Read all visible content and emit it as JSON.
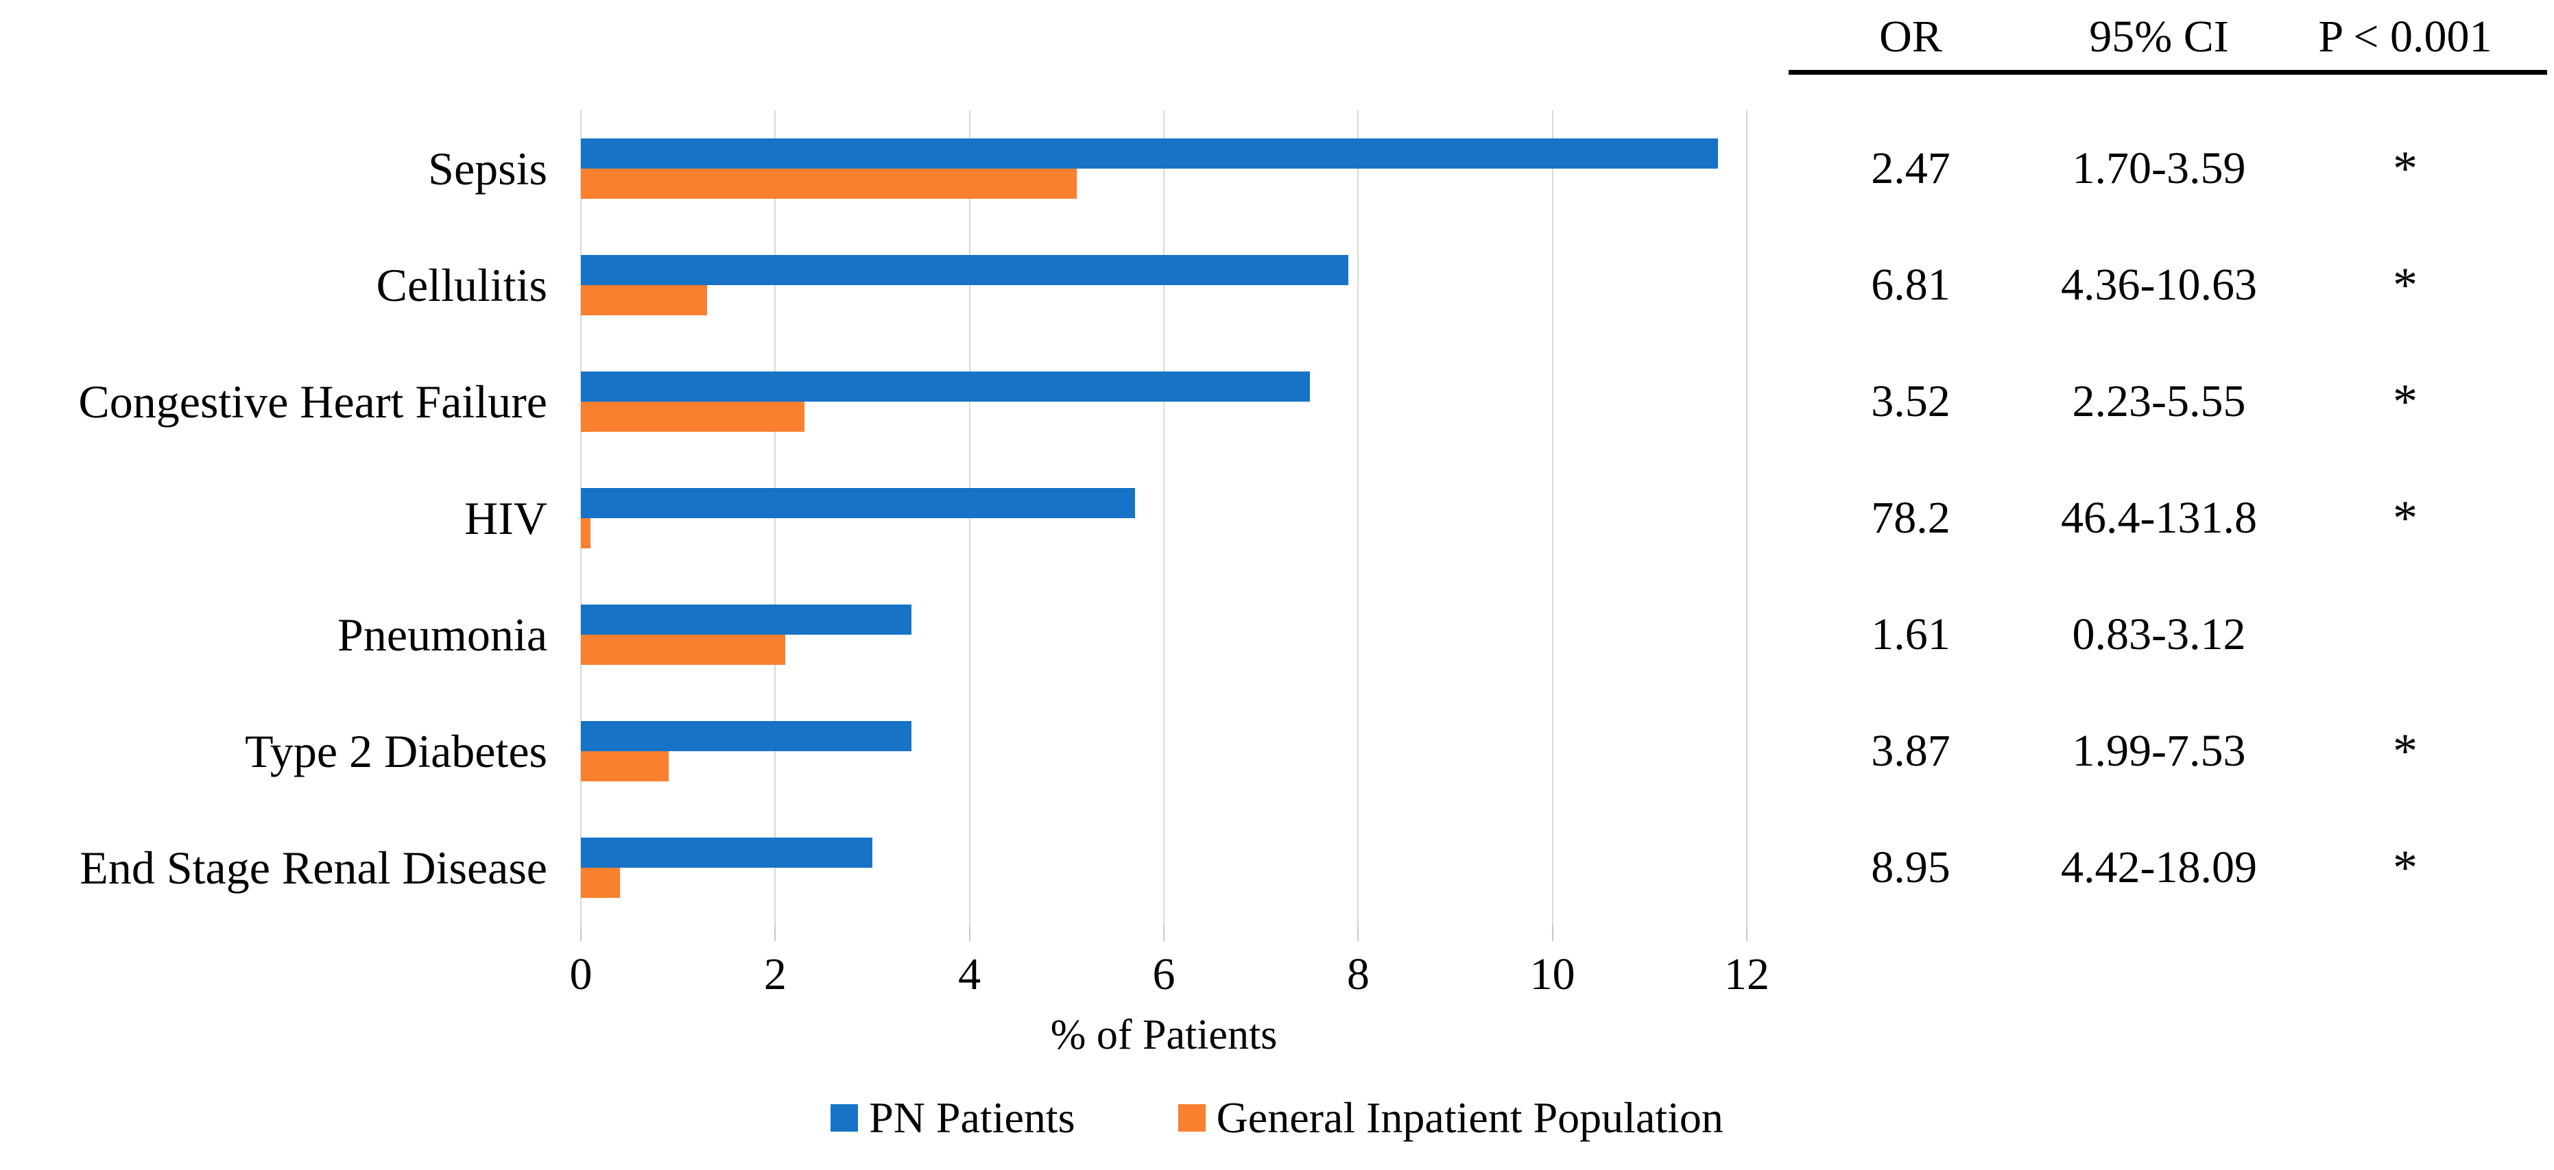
{
  "chart_data": {
    "type": "bar",
    "orientation": "horizontal",
    "title": "",
    "xlabel": "% of Patients",
    "ylabel": "",
    "xlim": [
      0,
      12
    ],
    "xticks": [
      0,
      2,
      4,
      6,
      8,
      10,
      12
    ],
    "grid": true,
    "legend_position": "bottom",
    "categories": [
      "Sepsis",
      "Cellulitis",
      "Congestive Heart Failure",
      "HIV",
      "Pneumonia",
      "Type 2 Diabetes",
      "End Stage Renal Disease"
    ],
    "series": [
      {
        "name": "PN Patients",
        "color": "#1673c6",
        "values": [
          11.7,
          7.9,
          7.5,
          5.7,
          3.4,
          3.4,
          3.0
        ]
      },
      {
        "name": "General Inpatient Population",
        "color": "#f8802e",
        "values": [
          5.1,
          1.3,
          2.3,
          0.1,
          2.1,
          0.9,
          0.4
        ]
      }
    ]
  },
  "table": {
    "headers": [
      "OR",
      "95% CI",
      "P < 0.001"
    ],
    "rows": [
      {
        "or": "2.47",
        "ci": "1.70-3.59",
        "p": "*"
      },
      {
        "or": "6.81",
        "ci": "4.36-10.63",
        "p": "*"
      },
      {
        "or": "3.52",
        "ci": "2.23-5.55",
        "p": "*"
      },
      {
        "or": "78.2",
        "ci": "46.4-131.8",
        "p": "*"
      },
      {
        "or": "1.61",
        "ci": "0.83-3.12",
        "p": ""
      },
      {
        "or": "3.87",
        "ci": "1.99-7.53",
        "p": "*"
      },
      {
        "or": "8.95",
        "ci": "4.42-18.09",
        "p": "*"
      }
    ]
  },
  "style": {
    "gridline_color": "#d9d9d9",
    "tick_color": "#c6c6c6",
    "rule_color": "#000000",
    "background": "#ffffff"
  }
}
